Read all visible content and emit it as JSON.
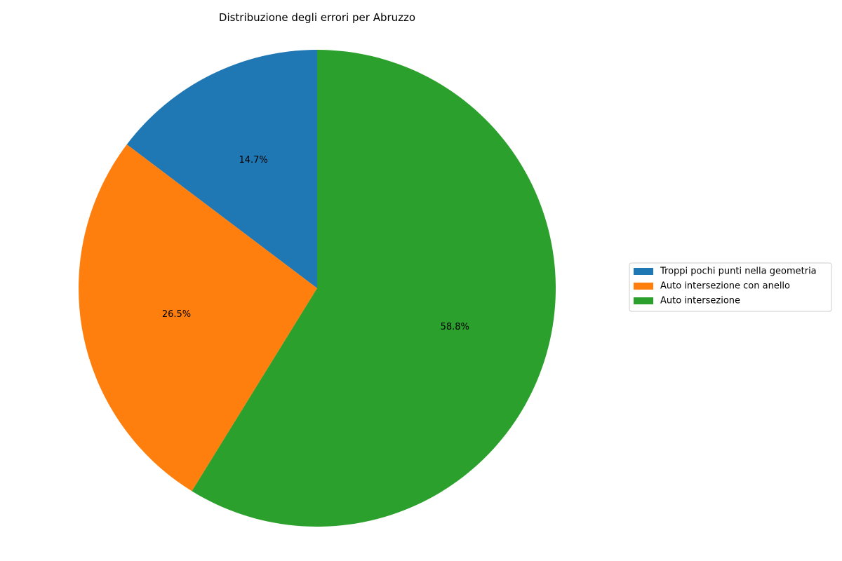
{
  "chart_data": {
    "type": "pie",
    "title": "Distribuzione degli errori per Abruzzo",
    "start_angle_deg": 90,
    "direction": "counterclockwise",
    "legend_position": "right",
    "slices": [
      {
        "label": "Troppi pochi punti nella geometria",
        "value": 14.7,
        "pct_label": "14.7%",
        "color": "#1f77b4"
      },
      {
        "label": "Auto intersezione con anello",
        "value": 26.5,
        "pct_label": "26.5%",
        "color": "#ff7f0e"
      },
      {
        "label": "Auto intersezione",
        "value": 58.8,
        "pct_label": "58.8%",
        "color": "#2ca02c"
      }
    ]
  }
}
